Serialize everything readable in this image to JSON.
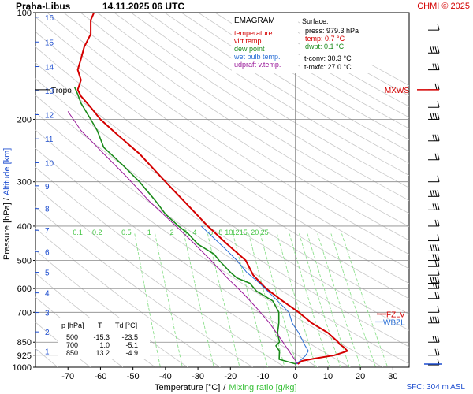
{
  "header": {
    "station": "Praha-Libus",
    "datetime": "14.11.2025 06 UTC",
    "copyright": "CHMI © 2025"
  },
  "legend": {
    "title": "EMAGRAM",
    "items": [
      {
        "label": "temperature",
        "color": "#d40000"
      },
      {
        "label": "virt.temp.",
        "color": "#d40000"
      },
      {
        "label": "dew point",
        "color": "#1a8a1a"
      },
      {
        "label": "wet bulb temp.",
        "color": "#2a6fd6"
      },
      {
        "label": "udpraft v.temp.",
        "color": "#9a1a9a"
      }
    ]
  },
  "surface": {
    "title": "Surface:",
    "lines": [
      {
        "text": "press: 979.3 hPa",
        "color": "#000000"
      },
      {
        "text": "temp: 0.7 °C",
        "color": "#d40000"
      },
      {
        "text": "dwpt: 0.1 °C",
        "color": "#1a8a1a"
      },
      {
        "text": "t-conv: 30.3 °C",
        "color": "#000000"
      },
      {
        "text": "t-mxfc: 27.0 °C",
        "color": "#000000"
      }
    ]
  },
  "table": {
    "headers": [
      "p [hPa]",
      "T",
      "Td [°C]"
    ],
    "rows": [
      [
        "500",
        "-15.3",
        "-23.5"
      ],
      [
        "700",
        "1.0",
        "-5.1"
      ],
      [
        "850",
        "13.2",
        "-4.9"
      ]
    ]
  },
  "axes": {
    "ylabel_pressure": "Pressure [hPa]",
    "ylabel_sep": "/",
    "ylabel_altitude": "Altitude [km]",
    "xlabel_temp": "Temperature [°C]",
    "xlabel_sep": "/",
    "xlabel_mixing": "Mixing ratio [g/kg]",
    "sfc_label": "SFC: 304 m ASL"
  },
  "markers": {
    "tropo": "Tropo",
    "mxws": "MXWS",
    "fzlv": "FZLV",
    "wbzl": "WBZL"
  },
  "chart_data": {
    "type": "line",
    "title": "Praha-Libus 14.11.2025 06 UTC",
    "x_range": [
      -80,
      35
    ],
    "y_range_hpa": [
      1000,
      100
    ],
    "y_scale": "log",
    "pressure_ticks": [
      100,
      200,
      300,
      400,
      500,
      600,
      700,
      850,
      925,
      1000
    ],
    "temperature_ticks": [
      -70,
      -60,
      -50,
      -40,
      -30,
      -20,
      -10,
      0,
      10,
      20,
      30
    ],
    "altitude_labels": [
      {
        "km": "1",
        "p": 900
      },
      {
        "km": "2",
        "p": 795
      },
      {
        "km": "3",
        "p": 701
      },
      {
        "km": "4",
        "p": 617
      },
      {
        "km": "5",
        "p": 540
      },
      {
        "km": "6",
        "p": 472
      },
      {
        "km": "7",
        "p": 411
      },
      {
        "km": "8",
        "p": 357
      },
      {
        "km": "9",
        "p": 308
      },
      {
        "km": "10",
        "p": 265
      },
      {
        "km": "11",
        "p": 227
      },
      {
        "km": "12",
        "p": 194
      },
      {
        "km": "13",
        "p": 166
      },
      {
        "km": "14",
        "p": 142
      },
      {
        "km": "15",
        "p": 121
      },
      {
        "km": "16",
        "p": 103
      }
    ],
    "mixing_ratio_labels": [
      {
        "label": "0.1",
        "x": -67
      },
      {
        "label": "0.2",
        "x": -61
      },
      {
        "label": "0.5",
        "x": -52
      },
      {
        "label": "1",
        "x": -45
      },
      {
        "label": "2",
        "x": -38
      },
      {
        "label": "3",
        "x": -34
      },
      {
        "label": "4",
        "x": -31
      },
      {
        "label": "6",
        "x": -26
      },
      {
        "label": "8",
        "x": -23
      },
      {
        "label": "10",
        "x": -20.5
      },
      {
        "label": "12",
        "x": -18.5
      },
      {
        "label": "15",
        "x": -16
      },
      {
        "label": "20",
        "x": -12.5
      },
      {
        "label": "25",
        "x": -9.5
      }
    ],
    "mixing_ratio_values": [
      0.1,
      0.2,
      0.5,
      1,
      2,
      3,
      4,
      6,
      8,
      10,
      12,
      15,
      20,
      25
    ],
    "series": [
      {
        "name": "temperature",
        "color": "#d40000",
        "points": [
          [
            0.7,
            979
          ],
          [
            2,
            960
          ],
          [
            6,
            945
          ],
          [
            12,
            925
          ],
          [
            16,
            900
          ],
          [
            15,
            880
          ],
          [
            13.5,
            860
          ],
          [
            13.2,
            850
          ],
          [
            10,
            800
          ],
          [
            5,
            750
          ],
          [
            1,
            700
          ],
          [
            -4,
            650
          ],
          [
            -9,
            600
          ],
          [
            -13,
            550
          ],
          [
            -15.3,
            500
          ],
          [
            -21,
            450
          ],
          [
            -27,
            400
          ],
          [
            -33,
            350
          ],
          [
            -40,
            300
          ],
          [
            -48,
            250
          ],
          [
            -55,
            220
          ],
          [
            -60,
            200
          ],
          [
            -63,
            185
          ],
          [
            -66,
            172
          ],
          [
            -67,
            165
          ],
          [
            -66,
            155
          ],
          [
            -67,
            145
          ],
          [
            -66,
            135
          ],
          [
            -65,
            125
          ],
          [
            -63,
            115
          ],
          [
            -63,
            105
          ],
          [
            -62,
            100
          ]
        ]
      },
      {
        "name": "dew point",
        "color": "#1a8a1a",
        "points": [
          [
            0.1,
            979
          ],
          [
            -5,
            950
          ],
          [
            -4.9,
            900
          ],
          [
            -6,
            870
          ],
          [
            -4.9,
            850
          ],
          [
            -5.5,
            800
          ],
          [
            -5.1,
            750
          ],
          [
            -5.1,
            700
          ],
          [
            -7,
            650
          ],
          [
            -12,
            610
          ],
          [
            -14,
            580
          ],
          [
            -18,
            560
          ],
          [
            -20,
            540
          ],
          [
            -23.5,
            500
          ],
          [
            -25,
            480
          ],
          [
            -30,
            450
          ],
          [
            -33,
            420
          ],
          [
            -36,
            400
          ],
          [
            -40,
            370
          ],
          [
            -43,
            340
          ],
          [
            -48,
            300
          ],
          [
            -53,
            270
          ],
          [
            -59,
            240
          ],
          [
            -61,
            215
          ],
          [
            -63,
            200
          ],
          [
            -66,
            180
          ],
          [
            -67,
            170
          ],
          [
            -68,
            162
          ]
        ]
      },
      {
        "name": "wet bulb temp.",
        "color": "#2a6fd6",
        "points": [
          [
            0.3,
            979
          ],
          [
            3,
            930
          ],
          [
            4,
            900
          ],
          [
            3,
            870
          ],
          [
            1,
            800
          ],
          [
            -1,
            750
          ],
          [
            -2,
            700
          ],
          [
            -5.5,
            650
          ],
          [
            -11,
            580
          ],
          [
            -15,
            540
          ],
          [
            -18,
            500
          ],
          [
            -22,
            460
          ],
          [
            -29,
            400
          ]
        ]
      },
      {
        "name": "udpraft v.temp.",
        "color": "#9a1a9a",
        "points": [
          [
            0.7,
            979
          ],
          [
            -2,
            900
          ],
          [
            -5,
            820
          ],
          [
            -8,
            750
          ],
          [
            -12,
            680
          ],
          [
            -16,
            620
          ],
          [
            -21,
            560
          ],
          [
            -26,
            500
          ],
          [
            -32,
            440
          ],
          [
            -38,
            390
          ],
          [
            -45,
            340
          ],
          [
            -52,
            290
          ],
          [
            -59,
            250
          ],
          [
            -66,
            215
          ],
          [
            -70,
            190
          ]
        ]
      }
    ],
    "markers": [
      {
        "name": "Tropo",
        "p": 165
      },
      {
        "name": "FZLV",
        "p": 708
      },
      {
        "name": "WBZL",
        "p": 745
      },
      {
        "name": "MXWS",
        "p": 165
      }
    ],
    "wind_barbs_hpa": [
      985,
      925,
      850,
      750,
      700,
      640,
      600,
      580,
      550,
      520,
      500,
      470,
      440,
      400,
      360,
      330,
      300,
      260,
      230,
      200,
      185,
      165,
      145,
      130,
      112
    ]
  }
}
